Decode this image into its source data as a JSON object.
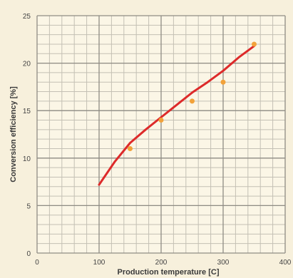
{
  "chart_data": {
    "type": "line",
    "xlabel": "Production temperature [C]",
    "ylabel": "Conversion efficiency [%]",
    "xlim": [
      0,
      400
    ],
    "ylim": [
      0,
      25
    ],
    "x_ticks": [
      0,
      100,
      200,
      300,
      400
    ],
    "y_ticks": [
      0,
      5,
      10,
      15,
      20,
      25
    ],
    "minor_x_step": 20,
    "minor_y_step": 1,
    "grid": true,
    "series": [
      {
        "kind": "line",
        "color": "#dd2a2a",
        "x": [
          100,
          125,
          150,
          175,
          200,
          225,
          250,
          275,
          300,
          325,
          350
        ],
        "y": [
          7.2,
          9.6,
          11.6,
          13.0,
          14.3,
          15.6,
          16.9,
          18.0,
          19.2,
          20.6,
          21.8
        ]
      },
      {
        "kind": "points",
        "color": "#f2a23a",
        "x": [
          150,
          200,
          250,
          300,
          350
        ],
        "y": [
          11.0,
          14.0,
          16.0,
          18.0,
          22.0
        ]
      }
    ]
  },
  "colors": {
    "background": "#f7f0dc",
    "plot_background": "#fbf6e6",
    "grid_minor": "#c4c0b4",
    "grid_major": "#8f8c84"
  }
}
